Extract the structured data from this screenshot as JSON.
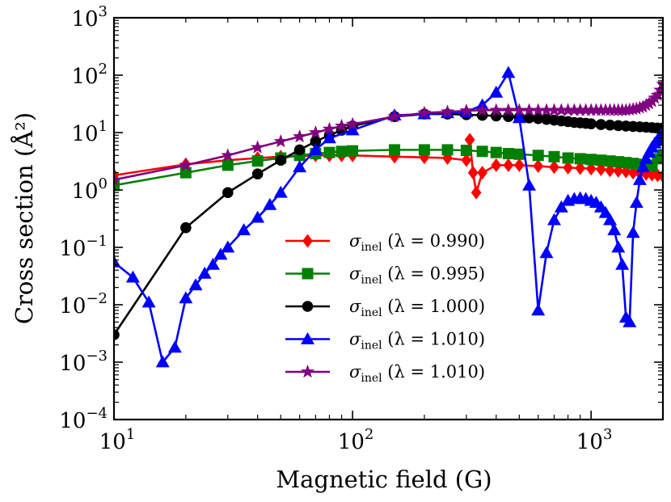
{
  "chart_data": {
    "type": "line",
    "xscale": "log",
    "yscale": "log",
    "xlim": [
      10,
      2000
    ],
    "ylim": [
      0.0001,
      1000
    ],
    "xlabel": "Magnetic field (G)",
    "ylabel": "Cross section (Å²)",
    "xticks": [
      {
        "value": 10,
        "base": "10",
        "exp": "1"
      },
      {
        "value": 100,
        "base": "10",
        "exp": "2"
      },
      {
        "value": 1000,
        "base": "10",
        "exp": "3"
      }
    ],
    "yticks": [
      {
        "value": 0.0001,
        "base": "10",
        "exp": "−4"
      },
      {
        "value": 0.001,
        "base": "10",
        "exp": "−3"
      },
      {
        "value": 0.01,
        "base": "10",
        "exp": "−2"
      },
      {
        "value": 0.1,
        "base": "10",
        "exp": "−1"
      },
      {
        "value": 1,
        "base": "10",
        "exp": "0"
      },
      {
        "value": 10,
        "base": "10",
        "exp": "1"
      },
      {
        "value": 100,
        "base": "10",
        "exp": "2"
      },
      {
        "value": 1000,
        "base": "10",
        "exp": "3"
      }
    ],
    "legend_position": "center-right",
    "series": [
      {
        "name": "σinel (λ = 0.990)",
        "symbol": "σ",
        "subscript": "inel",
        "param": "(λ = 0.990)",
        "color": "#ff0000",
        "marker": "diamond",
        "x": [
          10,
          20,
          30,
          40,
          50,
          60,
          70,
          80,
          90,
          100,
          150,
          200,
          250,
          300,
          310,
          320,
          330,
          350,
          400,
          450,
          500,
          600,
          700,
          800,
          900,
          1000,
          1100,
          1200,
          1300,
          1400,
          1500,
          1600,
          1700,
          1800,
          1900,
          2000
        ],
        "y": [
          1.8,
          2.8,
          3.3,
          3.6,
          3.8,
          3.9,
          4.0,
          4.0,
          4.0,
          4.0,
          3.8,
          3.7,
          3.6,
          3.3,
          7.5,
          2.0,
          0.9,
          2.0,
          2.7,
          2.7,
          2.7,
          2.6,
          2.5,
          2.45,
          2.4,
          2.35,
          2.3,
          2.2,
          2.15,
          2.1,
          2.0,
          1.95,
          1.9,
          1.85,
          1.8,
          1.75
        ]
      },
      {
        "name": "σinel (λ = 0.995)",
        "symbol": "σ",
        "subscript": "inel",
        "param": "(λ = 0.995)",
        "color": "#008000",
        "marker": "square",
        "x": [
          10,
          20,
          30,
          40,
          50,
          60,
          70,
          80,
          90,
          100,
          150,
          200,
          250,
          300,
          350,
          400,
          450,
          500,
          600,
          700,
          800,
          900,
          1000,
          1100,
          1200,
          1300,
          1400,
          1500,
          1600,
          1700,
          1800,
          1900,
          2000
        ],
        "y": [
          1.2,
          2.0,
          2.7,
          3.2,
          3.6,
          4.0,
          4.3,
          4.5,
          4.7,
          4.8,
          5.0,
          5.0,
          5.0,
          4.9,
          4.7,
          4.5,
          4.3,
          4.2,
          4.0,
          3.8,
          3.6,
          3.5,
          3.4,
          3.3,
          3.2,
          3.1,
          3.0,
          2.9,
          2.8,
          2.7,
          2.6,
          3.5,
          4.0
        ]
      },
      {
        "name": "σinel (λ = 1.000)",
        "symbol": "σ",
        "subscript": "inel",
        "param": "(λ = 1.000)",
        "color": "#000000",
        "marker": "circle",
        "x": [
          10,
          20,
          30,
          40,
          50,
          60,
          70,
          80,
          90,
          100,
          150,
          200,
          250,
          300,
          350,
          400,
          450,
          500,
          550,
          600,
          650,
          700,
          750,
          800,
          850,
          900,
          950,
          1000,
          1100,
          1200,
          1300,
          1400,
          1500,
          1600,
          1700,
          1800,
          1900,
          2000
        ],
        "y": [
          0.003,
          0.22,
          0.9,
          1.9,
          3.3,
          5.0,
          7.0,
          9.0,
          11.0,
          13.0,
          19.0,
          21.0,
          21.0,
          20.5,
          20.0,
          19.5,
          19.0,
          18.5,
          18.0,
          17.5,
          17.0,
          16.5,
          16.0,
          15.5,
          15.0,
          14.8,
          14.5,
          14.2,
          13.8,
          13.5,
          13.2,
          13.0,
          12.8,
          12.6,
          12.4,
          12.2,
          12.0,
          12.0
        ]
      },
      {
        "name": "σinel (λ = 1.010)",
        "symbol": "σ",
        "subscript": "inel",
        "param": "(λ = 1.010)",
        "color": "#0000ff",
        "marker": "triangle",
        "x": [
          10,
          12,
          14,
          16,
          18,
          20,
          22,
          24,
          26,
          28,
          30,
          35,
          40,
          45,
          50,
          60,
          70,
          80,
          100,
          150,
          200,
          250,
          300,
          350,
          400,
          450,
          500,
          550,
          600,
          650,
          700,
          750,
          800,
          850,
          900,
          950,
          1000,
          1050,
          1100,
          1150,
          1200,
          1250,
          1300,
          1350,
          1400,
          1450,
          1500,
          1550,
          1600,
          1650,
          1700,
          1750,
          1800,
          1850,
          1900,
          1950,
          2000
        ],
        "y": [
          0.055,
          0.03,
          0.011,
          0.001,
          0.0018,
          0.013,
          0.022,
          0.035,
          0.05,
          0.075,
          0.1,
          0.2,
          0.33,
          0.55,
          0.9,
          2.5,
          5.0,
          8.0,
          11.0,
          20.0,
          21.0,
          22.0,
          23.0,
          30.0,
          50.0,
          110.0,
          18.0,
          1.2,
          0.008,
          0.08,
          0.3,
          0.5,
          0.65,
          0.7,
          0.72,
          0.7,
          0.65,
          0.6,
          0.5,
          0.4,
          0.3,
          0.2,
          0.1,
          0.05,
          0.006,
          0.005,
          0.18,
          0.6,
          1.5,
          2.5,
          3.5,
          4.5,
          5.5,
          6.5,
          7.5,
          8.5,
          10.0
        ]
      },
      {
        "name": "σinel (λ = 1.010)",
        "symbol": "σ",
        "subscript": "inel",
        "param": "(λ = 1.010)",
        "color": "#800080",
        "marker": "star",
        "x": [
          10,
          20,
          30,
          40,
          50,
          60,
          70,
          80,
          90,
          100,
          150,
          200,
          250,
          300,
          350,
          400,
          450,
          500,
          550,
          600,
          650,
          700,
          750,
          800,
          850,
          900,
          950,
          1000,
          1050,
          1100,
          1150,
          1200,
          1250,
          1300,
          1350,
          1400,
          1450,
          1500,
          1550,
          1600,
          1650,
          1700,
          1750,
          1800,
          1850,
          1900,
          1950,
          2000
        ],
        "y": [
          1.5,
          2.7,
          4.0,
          5.5,
          7.0,
          8.5,
          10.0,
          11.5,
          13.0,
          14.0,
          19.0,
          22.0,
          23.0,
          24.0,
          24.5,
          24.5,
          24.5,
          24.5,
          24.5,
          24.5,
          24.5,
          24.5,
          24.5,
          24.5,
          24.5,
          24.5,
          24.5,
          24.5,
          24.5,
          24.5,
          24.5,
          24.5,
          24.5,
          24.5,
          24.5,
          24.5,
          25.0,
          25.5,
          26.0,
          27.0,
          28.0,
          30.0,
          32.0,
          35.0,
          40.0,
          45.0,
          55.0,
          70.0
        ]
      }
    ]
  }
}
